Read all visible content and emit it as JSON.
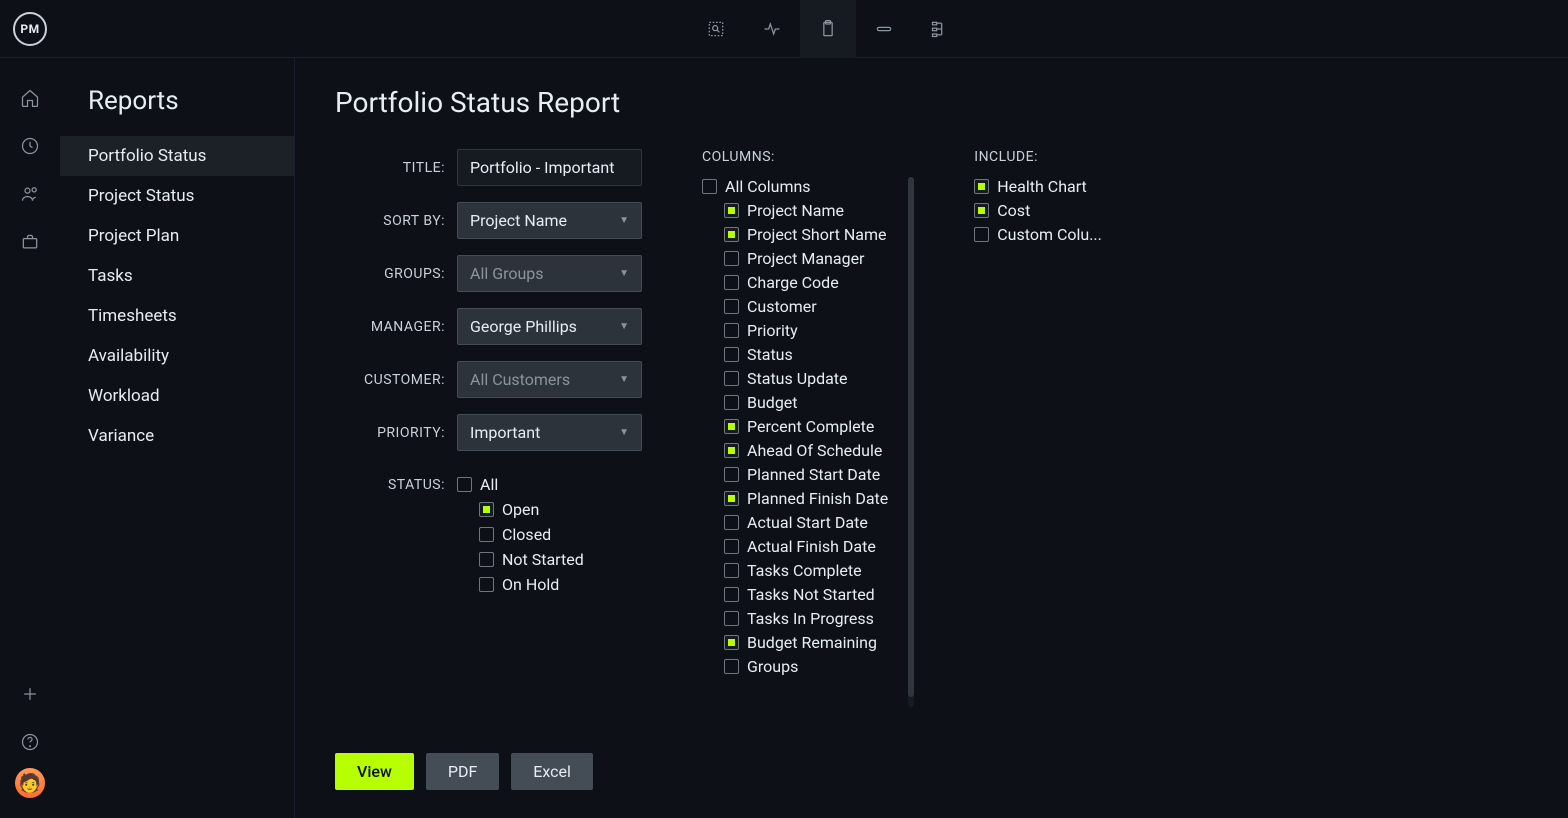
{
  "app_logo_text": "PM",
  "panel_title": "Reports",
  "page_title": "Portfolio Status Report",
  "report_items": [
    {
      "label": "Portfolio Status",
      "active": true
    },
    {
      "label": "Project Status",
      "active": false
    },
    {
      "label": "Project Plan",
      "active": false
    },
    {
      "label": "Tasks",
      "active": false
    },
    {
      "label": "Timesheets",
      "active": false
    },
    {
      "label": "Availability",
      "active": false
    },
    {
      "label": "Workload",
      "active": false
    },
    {
      "label": "Variance",
      "active": false
    }
  ],
  "form": {
    "title_label": "TITLE:",
    "title_value": "Portfolio - Important",
    "sort_label": "SORT BY:",
    "sort_value": "Project Name",
    "groups_label": "GROUPS:",
    "groups_value": "All Groups",
    "manager_label": "MANAGER:",
    "manager_value": "George Phillips",
    "customer_label": "CUSTOMER:",
    "customer_value": "All Customers",
    "priority_label": "PRIORITY:",
    "priority_value": "Important",
    "status_label": "STATUS:"
  },
  "status_options": [
    {
      "label": "All",
      "checked": false
    },
    {
      "label": "Open",
      "checked": true
    },
    {
      "label": "Closed",
      "checked": false
    },
    {
      "label": "Not Started",
      "checked": false
    },
    {
      "label": "On Hold",
      "checked": false
    }
  ],
  "columns_header": "COLUMNS:",
  "columns_all": {
    "label": "All Columns",
    "checked": false
  },
  "columns": [
    {
      "label": "Project Name",
      "checked": true
    },
    {
      "label": "Project Short Name",
      "checked": true
    },
    {
      "label": "Project Manager",
      "checked": false
    },
    {
      "label": "Charge Code",
      "checked": false
    },
    {
      "label": "Customer",
      "checked": false
    },
    {
      "label": "Priority",
      "checked": false
    },
    {
      "label": "Status",
      "checked": false
    },
    {
      "label": "Status Update",
      "checked": false
    },
    {
      "label": "Budget",
      "checked": false
    },
    {
      "label": "Percent Complete",
      "checked": true
    },
    {
      "label": "Ahead Of Schedule",
      "checked": true
    },
    {
      "label": "Planned Start Date",
      "checked": false
    },
    {
      "label": "Planned Finish Date",
      "checked": true
    },
    {
      "label": "Actual Start Date",
      "checked": false
    },
    {
      "label": "Actual Finish Date",
      "checked": false
    },
    {
      "label": "Tasks Complete",
      "checked": false
    },
    {
      "label": "Tasks Not Started",
      "checked": false
    },
    {
      "label": "Tasks In Progress",
      "checked": false
    },
    {
      "label": "Budget Remaining",
      "checked": true
    },
    {
      "label": "Groups",
      "checked": false
    }
  ],
  "include_header": "INCLUDE:",
  "include_items": [
    {
      "label": "Health Chart",
      "checked": true
    },
    {
      "label": "Cost",
      "checked": true
    },
    {
      "label": "Custom Colu...",
      "checked": false
    }
  ],
  "actions": {
    "view": "View",
    "pdf": "PDF",
    "excel": "Excel"
  }
}
